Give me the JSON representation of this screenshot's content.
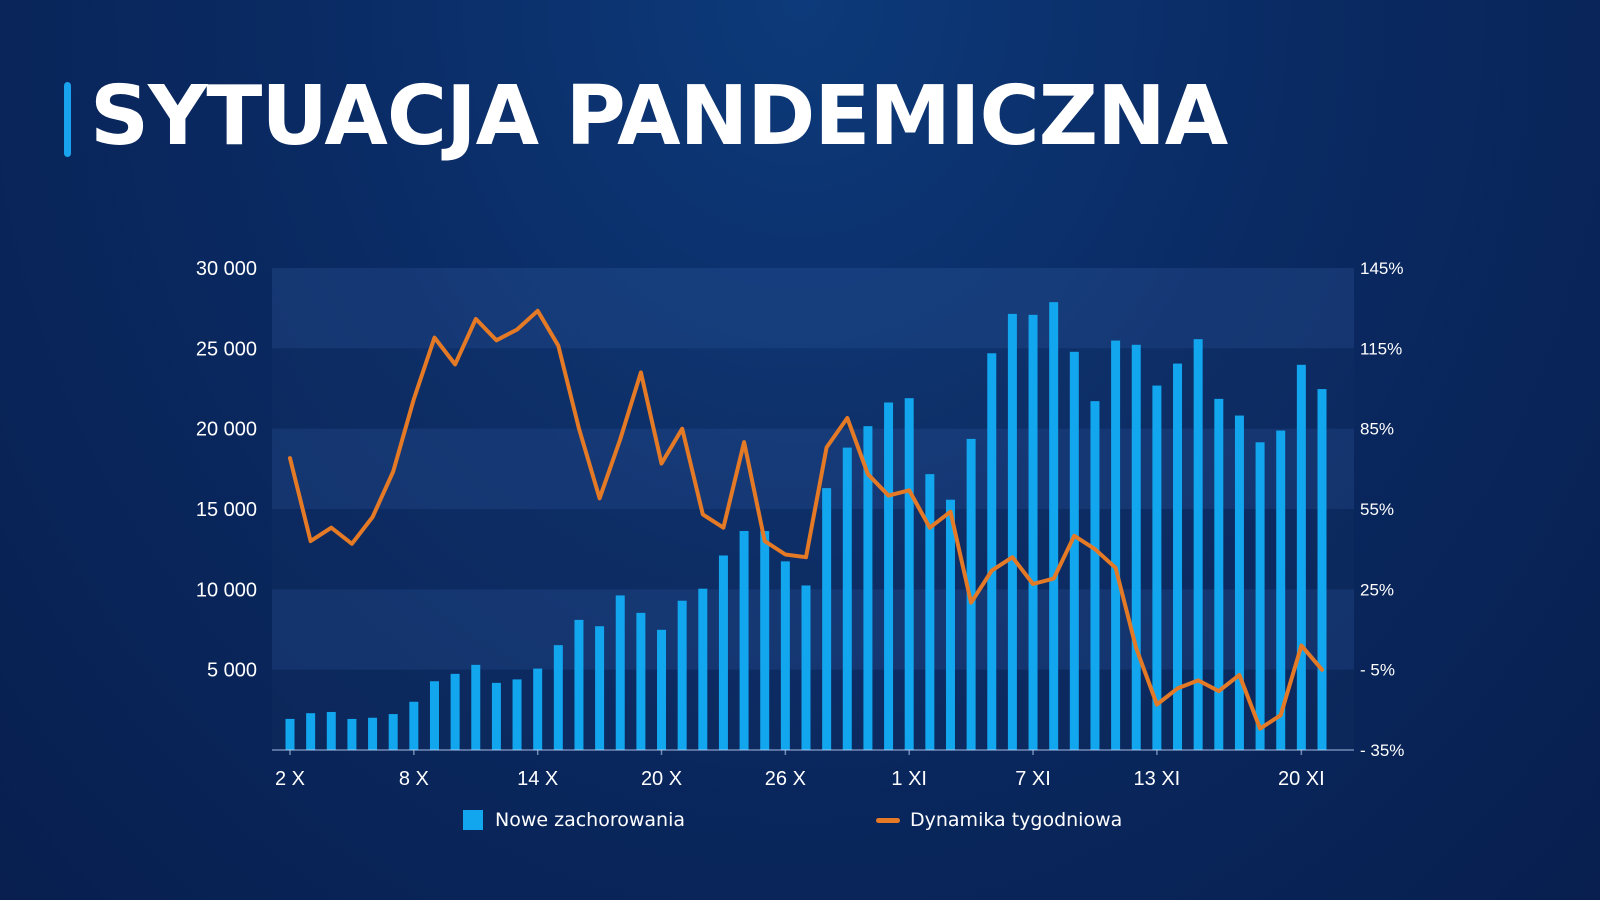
{
  "page": {
    "title": "SYTUACJA PANDEMICZNA"
  },
  "colors": {
    "accent": "#19a3ee",
    "bar": "#12a6ee",
    "line": "#e57a26",
    "background": "#0a2a63"
  },
  "chart_data": {
    "type": "bar",
    "x": [
      "2 X",
      "3 X",
      "4 X",
      "5 X",
      "6 X",
      "7 X",
      "8 X",
      "9 X",
      "10 X",
      "11 X",
      "12 X",
      "13 X",
      "14 X",
      "15 X",
      "16 X",
      "17 X",
      "18 X",
      "19 X",
      "20 X",
      "21 X",
      "22 X",
      "23 X",
      "24 X",
      "25 X",
      "26 X",
      "27 X",
      "28 X",
      "29 X",
      "30 X",
      "31 X",
      "1 XI",
      "2 XI",
      "3 XI",
      "4 XI",
      "5 XI",
      "6 XI",
      "7 XI",
      "8 XI",
      "9 XI",
      "10 XI",
      "11 XI",
      "12 XI",
      "13 XI",
      "14 XI",
      "15 XI",
      "16 XI",
      "17 XI",
      "18 XI",
      "19 XI",
      "20 XI",
      "21 XI"
    ],
    "x_tick_labels": [
      "2 X",
      "8 X",
      "14 X",
      "20 X",
      "26 X",
      "1 XI",
      "7 XI",
      "13 XI",
      "20 XI"
    ],
    "series": [
      {
        "name": "Nowe zachorowania",
        "type": "bar",
        "axis": "left",
        "values": [
          1935,
          2292,
          2367,
          1934,
          2006,
          2236,
          3003,
          4280,
          4739,
          5300,
          4178,
          4394,
          5068,
          6526,
          8099,
          7705,
          9622,
          8536,
          7482,
          9291,
          10040,
          12107,
          13632,
          13628,
          11742,
          10241,
          16300,
          18820,
          20156,
          21629,
          21897,
          17171,
          15578,
          19364,
          24692,
          27143,
          27086,
          27875,
          24785,
          21713,
          25484,
          25221,
          22683,
          24051,
          25571,
          21854,
          20816,
          19152,
          19883,
          23975,
          22464
        ]
      },
      {
        "name": "Dynamika tygodniowa",
        "type": "line",
        "axis": "right",
        "values": [
          74,
          43,
          48,
          42,
          52,
          69,
          96,
          119,
          109,
          126,
          118,
          122,
          129,
          116,
          85,
          59,
          81,
          106,
          72,
          85,
          53,
          48,
          80,
          43,
          38,
          37,
          78,
          89,
          68,
          60,
          62,
          48,
          54,
          20,
          32,
          37,
          27,
          29,
          45,
          40,
          33,
          3,
          -18,
          -12,
          -9,
          -13,
          -7,
          -27,
          -22,
          4,
          -5
        ]
      }
    ],
    "y_left": {
      "ylim": [
        0,
        30000
      ],
      "ticks": [
        5000,
        10000,
        15000,
        20000,
        25000,
        30000
      ],
      "tick_labels": [
        "5 000",
        "10 000",
        "15 000",
        "20 000",
        "25 000",
        "30 000"
      ]
    },
    "y_right": {
      "ylim": [
        -35,
        145
      ],
      "ticks": [
        -35,
        -5,
        25,
        55,
        85,
        115,
        145
      ],
      "tick_labels": [
        "- 35%",
        "- 5%",
        "25%",
        "55%",
        "85%",
        "115%",
        "145%"
      ]
    },
    "grid": "alternating horizontal bands",
    "legend_position": "bottom-center",
    "legend": [
      "Nowe zachorowania",
      "Dynamika tygodniowa"
    ]
  }
}
